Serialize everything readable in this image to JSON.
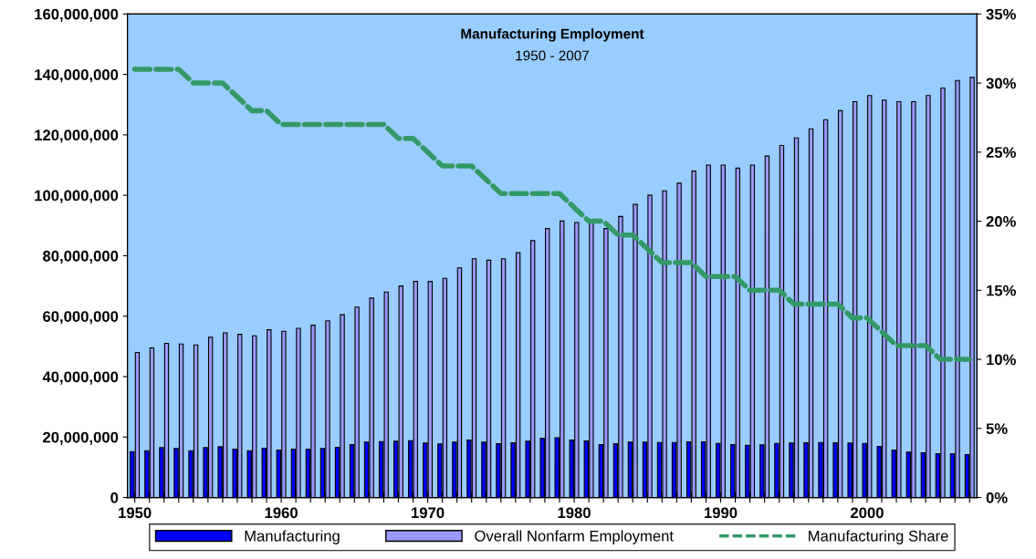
{
  "chart_data": {
    "type": "bar",
    "title": "Manufacturing Employment",
    "subtitle": "1950 - 2007",
    "categories": [
      "1950",
      null,
      null,
      null,
      null,
      null,
      null,
      null,
      null,
      null,
      "1960",
      null,
      null,
      null,
      null,
      null,
      null,
      null,
      null,
      null,
      "1970",
      null,
      null,
      null,
      null,
      null,
      null,
      null,
      null,
      null,
      "1980",
      null,
      null,
      null,
      null,
      null,
      null,
      null,
      null,
      null,
      "1990",
      null,
      null,
      null,
      null,
      null,
      null,
      null,
      null,
      null,
      "2000",
      null,
      null,
      null,
      null,
      null,
      null,
      null
    ],
    "series": [
      {
        "name": "Manufacturing",
        "color": "#0000ff",
        "values": [
          15200000,
          15500000,
          16500000,
          16200000,
          15500000,
          16500000,
          16800000,
          16000000,
          15500000,
          16300000,
          15700000,
          16000000,
          16000000,
          16200000,
          16600000,
          17500000,
          18300000,
          18500000,
          18600000,
          18800000,
          18000000,
          17700000,
          18300000,
          19000000,
          18300000,
          17800000,
          18100000,
          18600000,
          19600000,
          19800000,
          19000000,
          18700000,
          17500000,
          17800000,
          18300000,
          18300000,
          18200000,
          18200000,
          18400000,
          18400000,
          17900000,
          17500000,
          17300000,
          17400000,
          17900000,
          18000000,
          18100000,
          18200000,
          18100000,
          18000000,
          17900000,
          16900000,
          15700000,
          15000000,
          14800000,
          14500000,
          14500000,
          14200000
        ]
      },
      {
        "name": "Overall Nonfarm Employment",
        "color": "#9999ff",
        "values": [
          48000000,
          49500000,
          51000000,
          50800000,
          50500000,
          53000000,
          54500000,
          54000000,
          53500000,
          55500000,
          55000000,
          56000000,
          57000000,
          58500000,
          60500000,
          63000000,
          66000000,
          68000000,
          70000000,
          71500000,
          71500000,
          72500000,
          76000000,
          79000000,
          78500000,
          79000000,
          81000000,
          85000000,
          89000000,
          91500000,
          91000000,
          91000000,
          89000000,
          93000000,
          97000000,
          100000000,
          101500000,
          104000000,
          108000000,
          110000000,
          110000000,
          109000000,
          110000000,
          113000000,
          116500000,
          119000000,
          122000000,
          125000000,
          128000000,
          131000000,
          133000000,
          131500000,
          131000000,
          131000000,
          133000000,
          135500000,
          138000000,
          139000000
        ]
      },
      {
        "name": "Manufacturing Share",
        "type": "line",
        "axis": "y2",
        "color": "#339966",
        "line_style": "dashed",
        "values": [
          31,
          31,
          31,
          31,
          30,
          30,
          30,
          29,
          28,
          28,
          27,
          27,
          27,
          27,
          27,
          27,
          27,
          27,
          26,
          26,
          25,
          24,
          24,
          24,
          23,
          22,
          22,
          22,
          22,
          22,
          21,
          20,
          20,
          19,
          19,
          18,
          17,
          17,
          17,
          16,
          16,
          16,
          15,
          15,
          15,
          14,
          14,
          14,
          14,
          13,
          13,
          12,
          11,
          11,
          11,
          10,
          10,
          10
        ]
      }
    ],
    "ylim": [
      0,
      160000000
    ],
    "yticks": [
      0,
      {
        "value": 20000000,
        "label": "20,000,000"
      },
      {
        "value": 40000000,
        "label": "40,000,000"
      },
      {
        "value": 60000000,
        "label": "60,000,000"
      },
      {
        "value": 80000000,
        "label": "80,000,000"
      },
      {
        "value": 100000000,
        "label": "100,000,000"
      },
      {
        "value": 120000000,
        "label": "120,000,000"
      },
      {
        "value": 140000000,
        "label": "140,000,000"
      },
      {
        "value": 160000000,
        "label": "160,000,000"
      }
    ],
    "y2lim": [
      0,
      35
    ],
    "y2ticks": [
      {
        "value": 0,
        "label": "0%"
      },
      {
        "value": 5,
        "label": "5%"
      },
      {
        "value": 10,
        "label": "10%"
      },
      {
        "value": 15,
        "label": "15%"
      },
      {
        "value": 20,
        "label": "20%"
      },
      {
        "value": 25,
        "label": "25%"
      },
      {
        "value": 30,
        "label": "30%"
      },
      {
        "value": 35,
        "label": "35%"
      }
    ],
    "grid": false,
    "legend": "bottom",
    "marker": "none"
  }
}
